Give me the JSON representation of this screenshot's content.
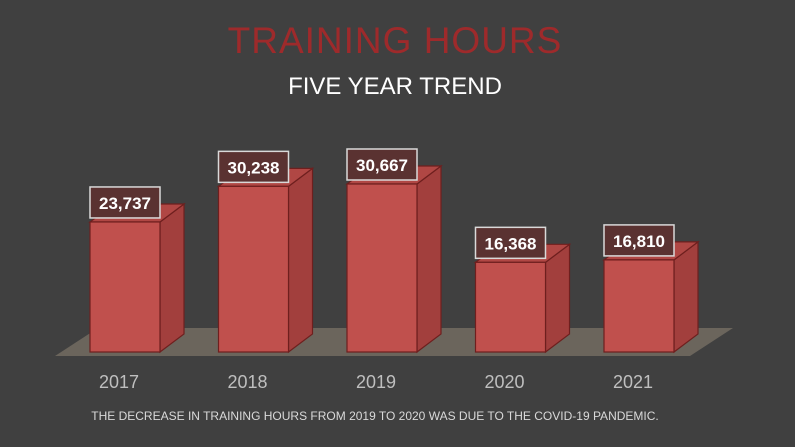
{
  "chart_data": {
    "type": "bar",
    "title": "TRAINING HOURS",
    "subtitle": "FIVE YEAR TREND",
    "categories": [
      "2017",
      "2018",
      "2019",
      "2020",
      "2021"
    ],
    "values": [
      23737,
      30238,
      30667,
      16368,
      16810
    ],
    "data_labels": [
      "23,737",
      "30,238",
      "30,667",
      "16,368",
      "16,810"
    ],
    "footnote": "THE DECREASE IN TRAINING HOURS FROM 2019 TO 2020 WAS DUE TO THE COVID-19 PANDEMIC.",
    "xlabel": "",
    "ylabel": "",
    "ylim": [
      0,
      30667
    ],
    "grid": false,
    "legend": "none",
    "style": "3d-column"
  },
  "colors": {
    "background": "#404040",
    "title": "#9e2a2b",
    "subtitle": "#ffffff",
    "bar_front": "#c0504d",
    "bar_side": "#a23f3d",
    "bar_top": "#b04744",
    "bar_edge": "#6e1f1e",
    "floor": "#6b655c",
    "axis_text": "#bfbfbf",
    "label_box": "#5a3231",
    "label_border": "#d9d9d9",
    "label_text": "#ffffff",
    "footnote": "#d9d9d9"
  }
}
